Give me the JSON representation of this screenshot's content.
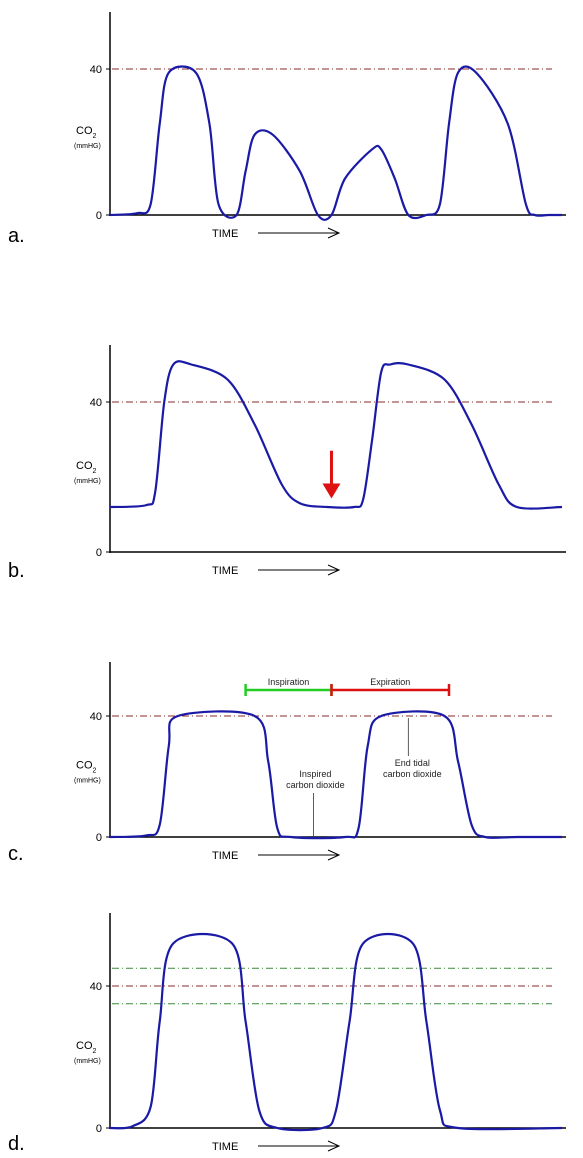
{
  "chart_data": [
    {
      "type": "line",
      "panel_label": "a.",
      "ylabel": "CO",
      "ylabel_subscript": "2",
      "yunit": "(mmHG)",
      "xlabel": "TIME",
      "yticks": [
        0,
        40
      ],
      "xlim": [
        0,
        100
      ],
      "ylim": [
        0,
        55
      ],
      "reference_lines": [
        {
          "y": 40,
          "color": "#8B2A2A",
          "style": "dash-dot"
        }
      ],
      "series": [
        {
          "color": "#1a1aa6",
          "x": [
            0,
            6,
            9,
            11,
            13,
            19,
            22,
            24,
            28,
            30,
            32,
            36,
            42,
            46,
            49,
            52,
            58,
            60,
            63,
            66,
            70,
            73,
            75,
            77,
            81,
            88,
            92,
            94,
            97,
            100
          ],
          "y": [
            0,
            0.5,
            3,
            25,
            39,
            39,
            25,
            3,
            0,
            12,
            22,
            22,
            12,
            0,
            0,
            10,
            18,
            18,
            10,
            0,
            0,
            3,
            25,
            39,
            39,
            25,
            3,
            0,
            0,
            0
          ]
        }
      ]
    },
    {
      "type": "line",
      "panel_label": "b.",
      "ylabel": "CO",
      "ylabel_subscript": "2",
      "yunit": "(mmHG)",
      "xlabel": "TIME",
      "yticks": [
        0,
        40
      ],
      "xlim": [
        0,
        100
      ],
      "ylim": [
        0,
        55
      ],
      "reference_lines": [
        {
          "y": 40,
          "color": "#8B2A2A",
          "style": "dash-dot"
        }
      ],
      "annotations": [
        {
          "type": "arrow",
          "color": "#dd1111",
          "x": 49,
          "y_from": 27,
          "y_to": 14
        }
      ],
      "series": [
        {
          "color": "#1a1aa6",
          "x": [
            0,
            8,
            10,
            12,
            14,
            18,
            26,
            32,
            38,
            42,
            48,
            54,
            56,
            58,
            60,
            62,
            66,
            74,
            80,
            86,
            90,
            100
          ],
          "y": [
            12,
            12.5,
            16,
            40,
            50,
            50,
            46,
            34,
            18,
            13,
            12,
            12,
            14,
            30,
            48,
            50,
            50,
            46,
            34,
            18,
            12,
            12
          ]
        }
      ]
    },
    {
      "type": "line",
      "panel_label": "c.",
      "ylabel": "CO",
      "ylabel_subscript": "2",
      "yunit": "(mmHG)",
      "xlabel": "TIME",
      "yticks": [
        0,
        40
      ],
      "xlim": [
        0,
        100
      ],
      "ylim": [
        0,
        55
      ],
      "reference_lines": [
        {
          "y": 40,
          "color": "#8B2A2A",
          "style": "dash-dot"
        }
      ],
      "phases": [
        {
          "label": "Inspiration",
          "color": "#22cc22",
          "x_start": 30,
          "x_end": 49
        },
        {
          "label": "Expiration",
          "color": "#dd1111",
          "x_start": 49,
          "x_end": 75
        }
      ],
      "annotations": [
        {
          "type": "callout",
          "label_lines": [
            "Inspired",
            "carbon dioxide"
          ],
          "x": 45,
          "y": 0
        },
        {
          "type": "callout",
          "label_lines": [
            "End tidal",
            "carbon dioxide"
          ],
          "x": 66,
          "y": 40
        }
      ],
      "series": [
        {
          "color": "#1a1aa6",
          "x": [
            0,
            8,
            11,
            13,
            15,
            32,
            35,
            37,
            40,
            52,
            55,
            57,
            60,
            74,
            77,
            80,
            83,
            90,
            100
          ],
          "y": [
            0,
            0.5,
            4,
            30,
            40,
            40,
            25,
            3,
            0,
            0,
            3,
            30,
            40,
            40,
            25,
            4,
            0,
            0,
            0
          ]
        }
      ]
    },
    {
      "type": "line",
      "panel_label": "d.",
      "ylabel": "CO",
      "ylabel_subscript": "2",
      "yunit": "(mmHG)",
      "xlabel": "TIME",
      "yticks": [
        0,
        40
      ],
      "xlim": [
        0,
        100
      ],
      "ylim": [
        0,
        55
      ],
      "reference_lines": [
        {
          "y": 40,
          "color": "#8B2A2A",
          "style": "dash-dot"
        },
        {
          "y": 45,
          "color": "#3a8a3a",
          "style": "dash-dot"
        },
        {
          "y": 35,
          "color": "#3a8a3a",
          "style": "dash-dot"
        }
      ],
      "series": [
        {
          "color": "#1a1aa6",
          "x": [
            0,
            5,
            9,
            11,
            14,
            27,
            30,
            33,
            37,
            47,
            50,
            53,
            56,
            67,
            70,
            73,
            77,
            100
          ],
          "y": [
            0,
            0.5,
            6,
            30,
            52,
            52,
            30,
            5,
            0,
            0,
            5,
            30,
            52,
            52,
            30,
            5,
            0,
            0
          ]
        }
      ]
    }
  ]
}
